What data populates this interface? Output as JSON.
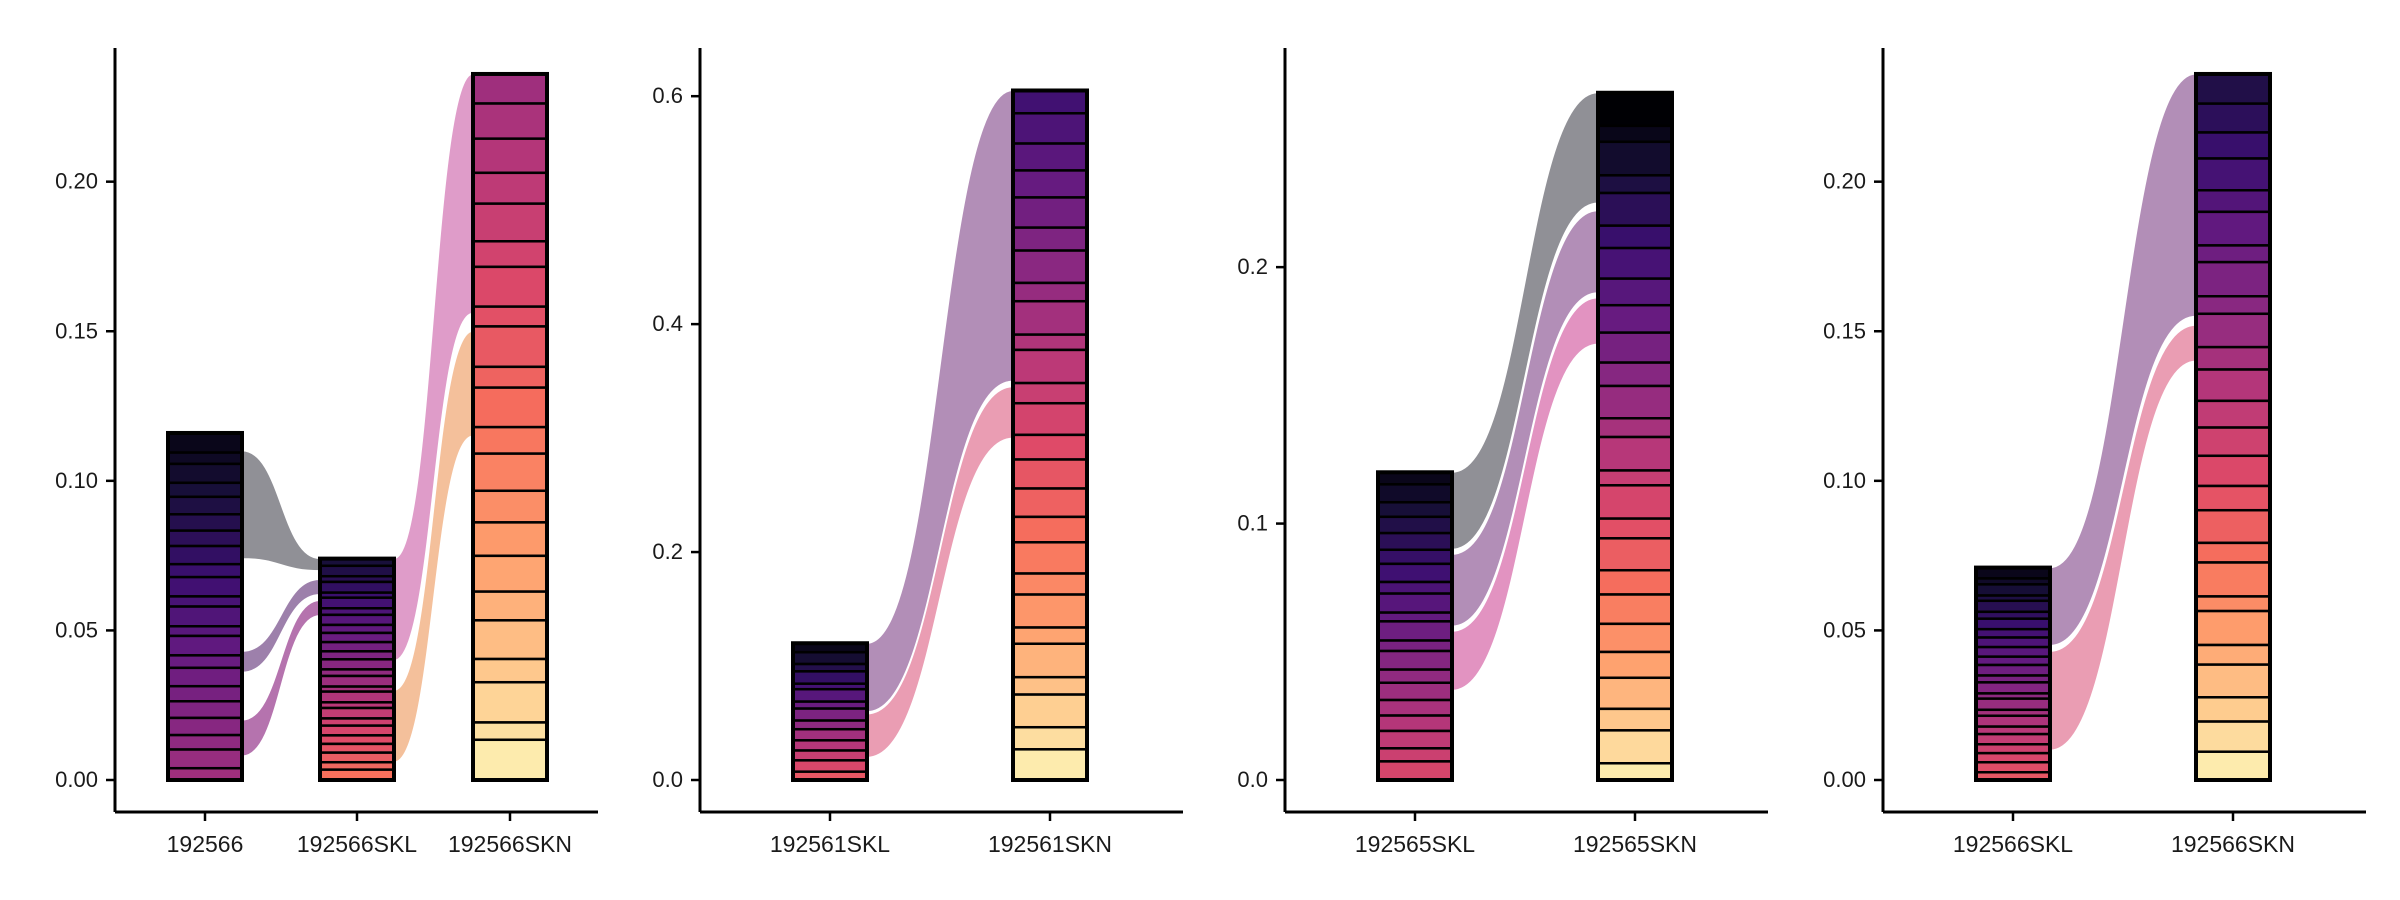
{
  "chart_data": [
    {
      "type": "alluvial",
      "categories": [
        "192566",
        "192566SKL",
        "192566SKN"
      ],
      "ylim": [
        0,
        0.24
      ],
      "yticks": [
        0.0,
        0.05,
        0.1,
        0.15,
        0.2
      ],
      "ytick_labels": [
        "0.00",
        "0.05",
        "0.10",
        "0.15",
        "0.20"
      ],
      "strata": [
        {
          "total": 0.116,
          "top_color": "#0b0b16",
          "bottom_color": "#a2207e",
          "min_segments": 22,
          "max_segments": 22
        },
        {
          "total": 0.074,
          "top_color": "#180f3a",
          "bottom_color": "#f8891d",
          "min_segments": 26,
          "max_segments": 26
        },
        {
          "total": 0.236,
          "top_color": "#a2207e",
          "bottom_color": "#fdfa9e",
          "min_segments": 22,
          "max_segments": 22
        }
      ],
      "flows": [
        {
          "from": 0,
          "to": 1,
          "from_range": [
            0.074,
            0.11
          ],
          "to_range": [
            0.07,
            0.074
          ],
          "color": "#7c7c84"
        },
        {
          "from": 0,
          "to": 1,
          "from_range": [
            0.036,
            0.043
          ],
          "to_range": [
            0.062,
            0.067
          ],
          "color": "#8c6a9c"
        },
        {
          "from": 0,
          "to": 1,
          "from_range": [
            0.008,
            0.02
          ],
          "to_range": [
            0.055,
            0.06
          ],
          "color": "#a85aa0"
        },
        {
          "from": 1,
          "to": 2,
          "from_range": [
            0.04,
            0.074
          ],
          "to_range": [
            0.156,
            0.236
          ],
          "color": "#d98bbf"
        },
        {
          "from": 1,
          "to": 2,
          "from_range": [
            0.006,
            0.03
          ],
          "to_range": [
            0.115,
            0.15
          ],
          "color": "#f2b58a"
        }
      ]
    },
    {
      "type": "alluvial",
      "categories": [
        "192561SKL",
        "192561SKN"
      ],
      "ylim": [
        0,
        0.63
      ],
      "yticks": [
        0.0,
        0.2,
        0.4,
        0.6
      ],
      "ytick_labels": [
        "0.0",
        "0.2",
        "0.4",
        "0.6"
      ],
      "strata": [
        {
          "total": 0.12,
          "top_color": "#0b0b16",
          "bottom_color": "#e05a66",
          "min_segments": 14,
          "max_segments": 14
        },
        {
          "total": 0.605,
          "top_color": "#4a1060",
          "bottom_color": "#fdfa9e",
          "min_segments": 26,
          "max_segments": 26
        }
      ],
      "flows": [
        {
          "from": 0,
          "to": 1,
          "from_range": [
            0.06,
            0.12
          ],
          "to_range": [
            0.35,
            0.605
          ],
          "color": "#a47aaa"
        },
        {
          "from": 0,
          "to": 1,
          "from_range": [
            0.02,
            0.058
          ],
          "to_range": [
            0.3,
            0.345
          ],
          "color": "#e68ca6"
        }
      ]
    },
    {
      "type": "alluvial",
      "categories": [
        "192565SKL",
        "192565SKN"
      ],
      "ylim": [
        0,
        0.28
      ],
      "yticks": [
        0.0,
        0.1,
        0.2
      ],
      "ytick_labels": [
        "0.0",
        "0.1",
        "0.2"
      ],
      "strata": [
        {
          "total": 0.12,
          "top_color": "#0b0b16",
          "bottom_color": "#d6405c",
          "min_segments": 20,
          "max_segments": 20
        },
        {
          "total": 0.268,
          "top_color": "#000004",
          "bottom_color": "#fdfa9e",
          "min_segments": 26,
          "max_segments": 26
        }
      ],
      "flows": [
        {
          "from": 0,
          "to": 1,
          "from_range": [
            0.09,
            0.12
          ],
          "to_range": [
            0.225,
            0.268
          ],
          "color": "#7c7c84"
        },
        {
          "from": 0,
          "to": 1,
          "from_range": [
            0.06,
            0.088
          ],
          "to_range": [
            0.19,
            0.222
          ],
          "color": "#a47aaa"
        },
        {
          "from": 0,
          "to": 1,
          "from_range": [
            0.035,
            0.058
          ],
          "to_range": [
            0.17,
            0.188
          ],
          "color": "#dd80b6"
        }
      ]
    },
    {
      "type": "alluvial",
      "categories": [
        "192566SKL",
        "192566SKN"
      ],
      "ylim": [
        0,
        0.24
      ],
      "yticks": [
        0.0,
        0.05,
        0.1,
        0.15,
        0.2
      ],
      "ytick_labels": [
        "0.00",
        "0.05",
        "0.10",
        "0.15",
        "0.20"
      ],
      "strata": [
        {
          "total": 0.071,
          "top_color": "#0b0b16",
          "bottom_color": "#e05a66",
          "min_segments": 24,
          "max_segments": 24
        },
        {
          "total": 0.236,
          "top_color": "#2a1040",
          "bottom_color": "#fdfa9e",
          "min_segments": 26,
          "max_segments": 26
        }
      ],
      "flows": [
        {
          "from": 0,
          "to": 1,
          "from_range": [
            0.045,
            0.071
          ],
          "to_range": [
            0.155,
            0.236
          ],
          "color": "#a47aaa"
        },
        {
          "from": 0,
          "to": 1,
          "from_range": [
            0.01,
            0.043
          ],
          "to_range": [
            0.14,
            0.152
          ],
          "color": "#e68ca6"
        }
      ]
    }
  ]
}
